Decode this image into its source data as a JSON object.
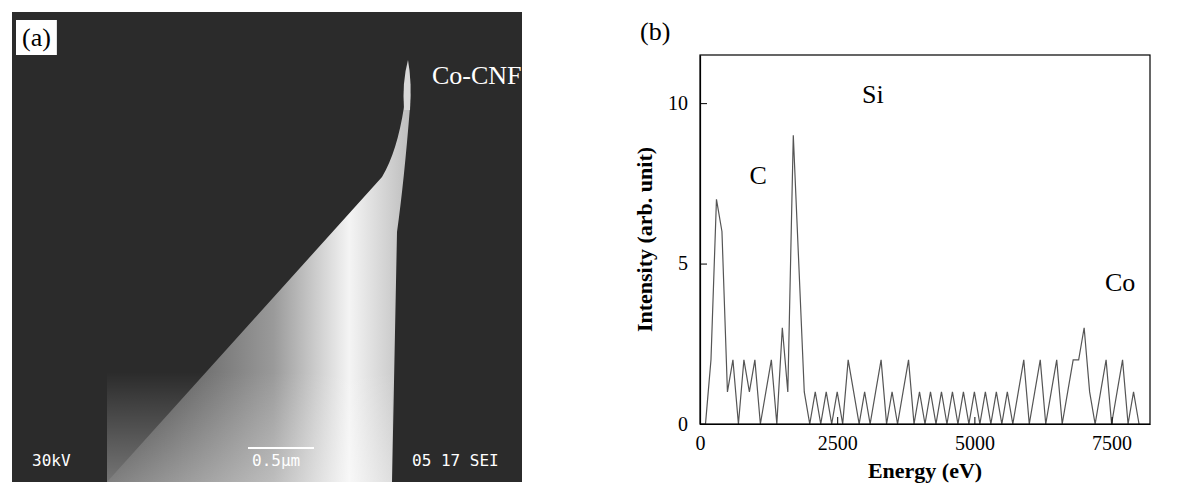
{
  "image_panel": {
    "panel_label": "(a)",
    "annotation": "Co-CNF",
    "info_bar": [
      "30kV",
      "0.5µm",
      "05 17 SEI"
    ]
  },
  "chart_data": {
    "type": "line",
    "panel_label": "(b)",
    "x_label": "Energy (eV)",
    "y_label": "Intensity (arb. unit)",
    "annotations": [
      "C",
      "Si",
      "Co"
    ],
    "color": "#555555",
    "x": [
      0,
      100,
      200,
      300,
      400,
      500,
      600,
      700,
      800,
      900,
      1000,
      1100,
      1200,
      1300,
      1400,
      1500,
      1600,
      1700,
      1800,
      1900,
      2000,
      2100,
      2200,
      2300,
      2400,
      2500,
      2600,
      2700,
      2800,
      2900,
      3000,
      3100,
      3200,
      3300,
      3400,
      3500,
      3600,
      3700,
      3800,
      3900,
      4000,
      4100,
      4200,
      4300,
      4400,
      4500,
      4600,
      4700,
      4800,
      4900,
      5000,
      5100,
      5200,
      5300,
      5400,
      5500,
      5600,
      5700,
      5800,
      5900,
      6000,
      6100,
      6200,
      6300,
      6400,
      6500,
      6600,
      6700,
      6800,
      6900,
      7000,
      7100,
      7200,
      7300,
      7400,
      7500,
      7600,
      7700,
      7800,
      7900,
      8000
    ],
    "values": [
      0,
      0,
      2,
      7,
      6,
      1,
      2,
      0,
      2,
      1,
      2,
      0,
      1,
      2,
      0,
      3,
      1,
      9,
      5,
      1,
      0,
      1,
      0,
      1,
      0,
      1,
      0,
      2,
      1,
      0,
      1,
      0,
      1,
      2,
      0,
      1,
      0,
      1,
      2,
      0,
      1,
      0,
      1,
      0,
      1,
      0,
      1,
      0,
      1,
      0,
      1,
      0,
      1,
      0,
      1,
      0,
      1,
      0,
      1,
      2,
      0,
      1,
      2,
      0,
      1,
      2,
      0,
      1,
      2,
      2,
      3,
      1,
      0,
      1,
      2,
      0,
      1,
      2,
      0,
      1,
      0
    ],
    "xlim": [
      0,
      8200
    ],
    "ylim": [
      0,
      11.5
    ],
    "xticks": [
      0,
      2500,
      5000,
      7500
    ],
    "yticks": [
      0,
      5,
      10
    ]
  }
}
